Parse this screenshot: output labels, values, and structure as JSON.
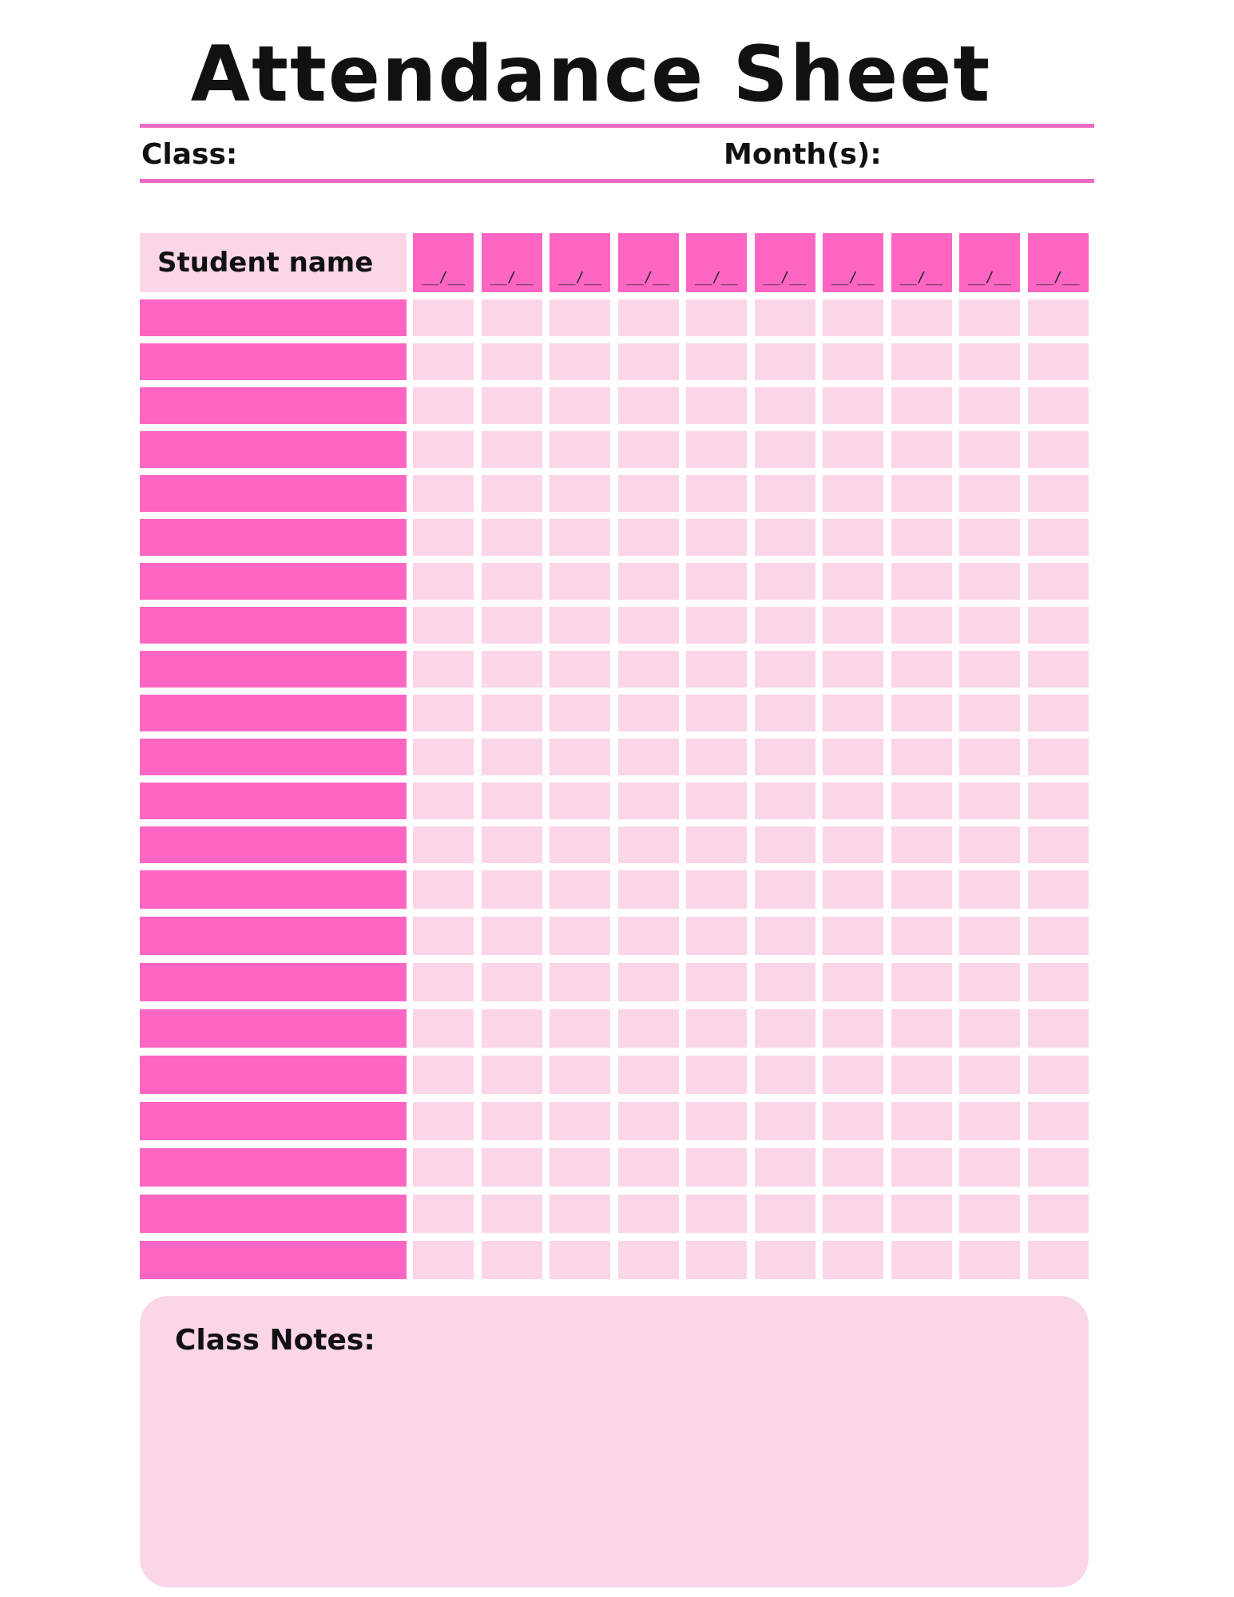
{
  "title": "Attendance Sheet",
  "fields": {
    "class_label": "Class:",
    "month_label": "Month(s):"
  },
  "table": {
    "name_header": "Student name",
    "date_columns": [
      "__/__",
      "__/__",
      "__/__",
      "__/__",
      "__/__",
      "__/__",
      "__/__",
      "__/__",
      "__/__",
      "__/__"
    ],
    "row_count": 22
  },
  "notes": {
    "label": "Class Notes:"
  },
  "colors": {
    "accent_pink": "#ff66c4",
    "light_pink": "#fbd5e8",
    "rule_pink": "#e96bc3"
  }
}
